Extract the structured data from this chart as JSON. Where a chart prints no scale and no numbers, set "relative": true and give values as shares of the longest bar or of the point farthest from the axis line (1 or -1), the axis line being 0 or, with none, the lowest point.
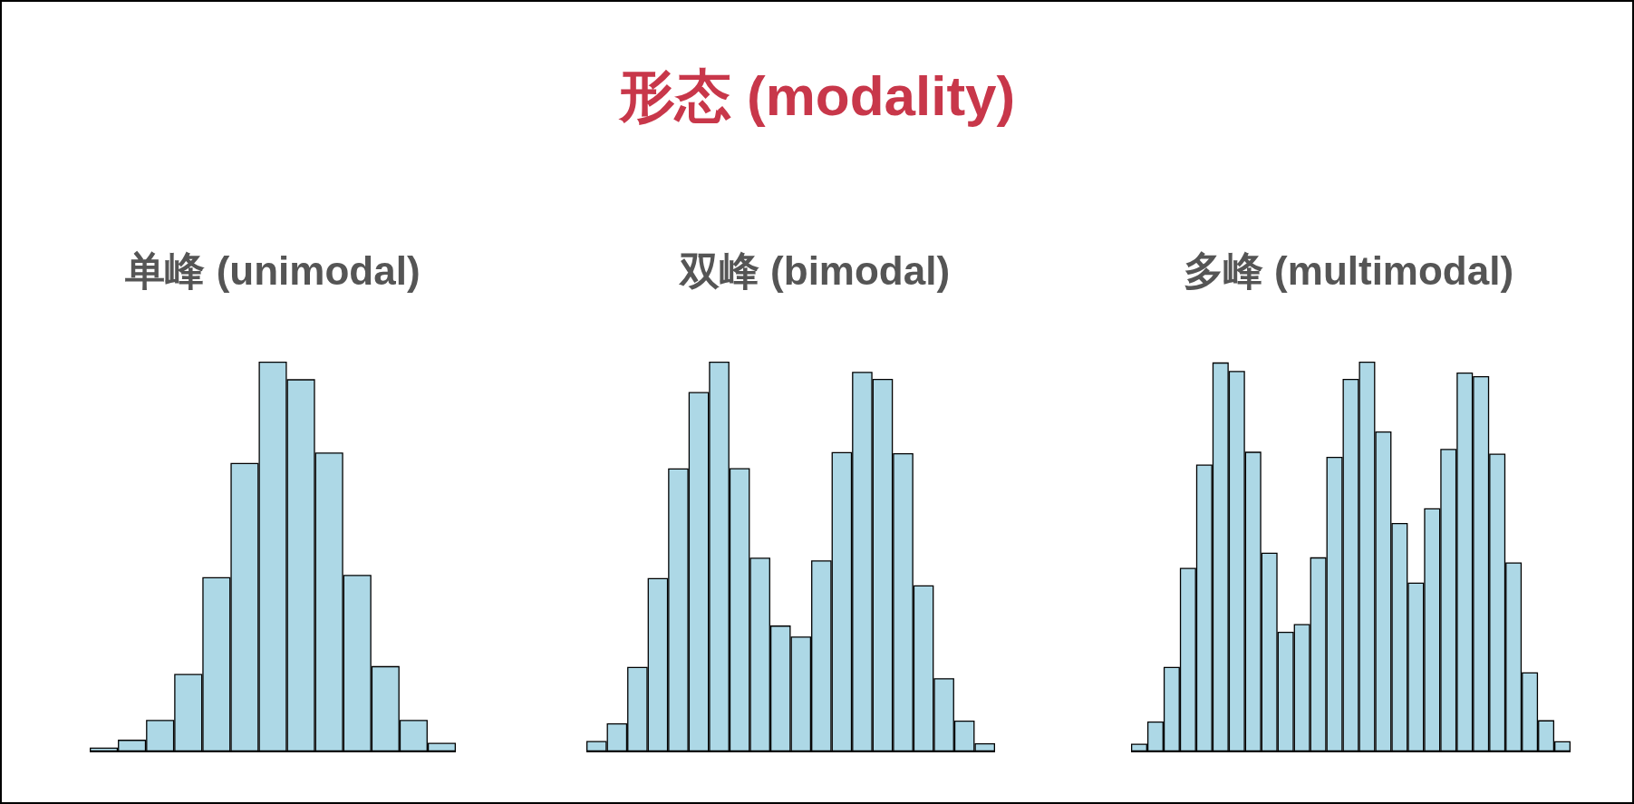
{
  "chart_data": [
    {
      "type": "other",
      "title": "形态 (modality)"
    },
    {
      "type": "bar",
      "subtitle": "单峰 (unimodal)",
      "relative": true,
      "color": "#add8e6",
      "grid": false,
      "categories": [
        null,
        null,
        null,
        null,
        null,
        null,
        null,
        null,
        null,
        null,
        null,
        null,
        null
      ],
      "values": [
        0.01,
        0.03,
        0.081,
        0.199,
        0.447,
        0.74,
        1,
        0.955,
        0.767,
        0.453,
        0.219,
        0.081,
        0.022
      ]
    },
    {
      "type": "bar",
      "subtitle": "双峰 (bimodal)",
      "relative": true,
      "color": "#add8e6",
      "grid": false,
      "categories": [
        null,
        null,
        null,
        null,
        null,
        null,
        null,
        null,
        null,
        null,
        null,
        null,
        null,
        null,
        null,
        null,
        null,
        null,
        null,
        null
      ],
      "values": [
        0.027,
        0.072,
        0.217,
        0.445,
        0.726,
        0.922,
        1,
        0.727,
        0.497,
        0.323,
        0.295,
        0.49,
        0.768,
        0.974,
        0.956,
        0.765,
        0.426,
        0.188,
        0.079,
        0.021
      ]
    },
    {
      "type": "bar",
      "subtitle": "多峰 (multimodal)",
      "relative": true,
      "color": "#add8e6",
      "grid": false,
      "categories": [
        null,
        null,
        null,
        null,
        null,
        null,
        null,
        null,
        null,
        null,
        null,
        null,
        null,
        null,
        null,
        null,
        null,
        null,
        null,
        null,
        null,
        null,
        null,
        null,
        null,
        null,
        null
      ],
      "values": [
        0.02,
        0.077,
        0.217,
        0.471,
        0.736,
        0.998,
        0.976,
        0.769,
        0.51,
        0.307,
        0.327,
        0.498,
        0.756,
        0.956,
        1,
        0.821,
        0.586,
        0.433,
        0.624,
        0.776,
        0.972,
        0.963,
        0.764,
        0.485,
        0.203,
        0.08,
        0.026
      ]
    }
  ]
}
